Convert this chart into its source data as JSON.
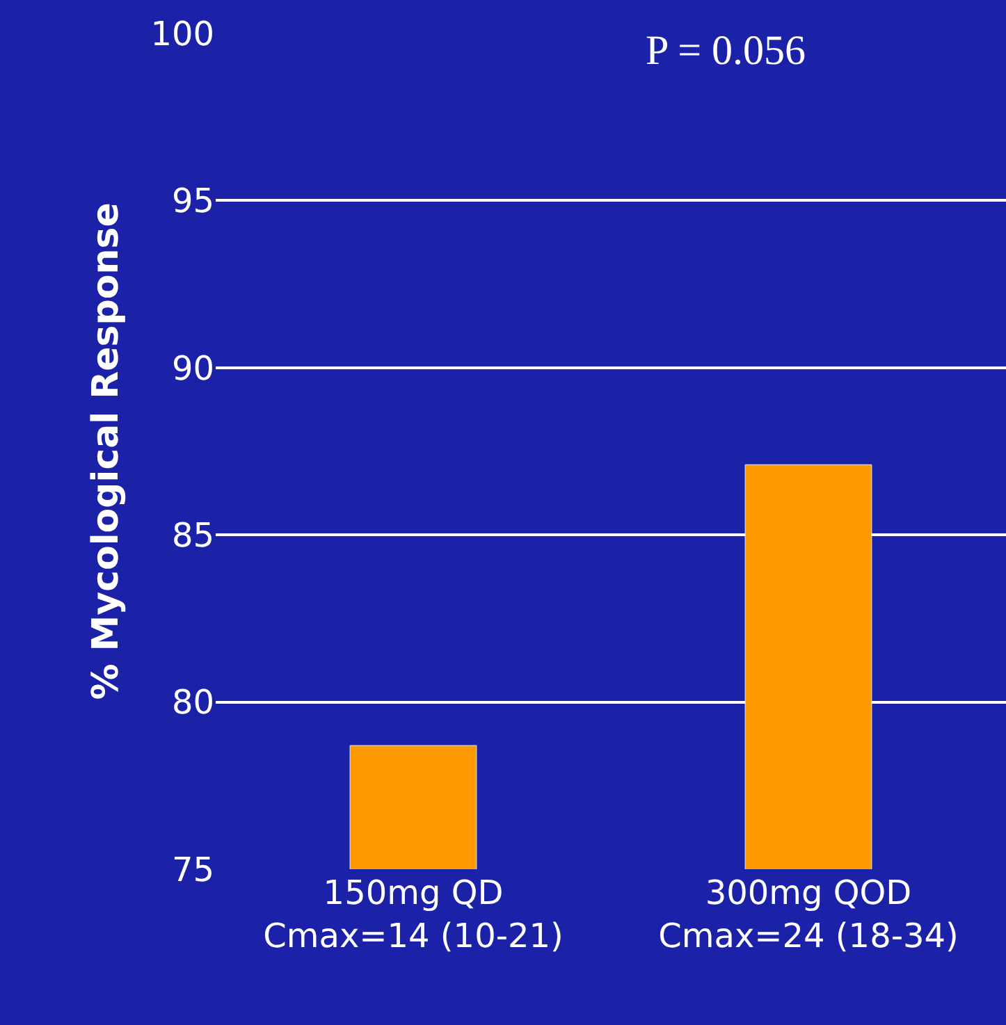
{
  "chart_data": {
    "type": "bar",
    "ylabel": "% Mycological Response",
    "categories": [
      "150mg QD\nCmax=14 (10-21)",
      "300mg QOD\nCmax=24 (18-34)"
    ],
    "values": [
      78.7,
      87.1
    ],
    "color": "#ff9900",
    "ylim": [
      75,
      100
    ],
    "yticks": [
      75,
      80,
      85,
      90,
      95,
      100
    ],
    "grid": "y",
    "annotations": [
      "P = 0.056"
    ]
  }
}
